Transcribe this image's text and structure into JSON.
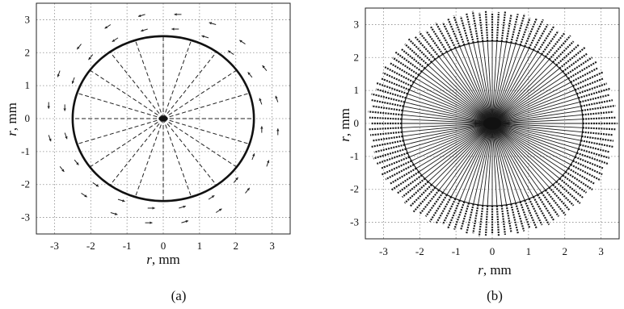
{
  "chart_data": [
    {
      "type": "scatter",
      "panel_label": "(a)",
      "xlabel_var": "r",
      "xlabel_unit": ", mm",
      "ylabel_var": "r",
      "ylabel_unit": ", mm",
      "xlim": [
        -3.5,
        3.5
      ],
      "ylim": [
        -3.5,
        3.5
      ],
      "xticks": [
        -3,
        -2,
        -1,
        0,
        1,
        2,
        3
      ],
      "yticks": [
        -3,
        -2,
        -1,
        0,
        1,
        2,
        3
      ],
      "grid": true,
      "ring_radius": 2.5,
      "ray_count": 20,
      "ray_style": "dashed",
      "arrow_rings": [
        2.75,
        3.2
      ],
      "arrow_length": 0.2,
      "center_blob_radius": 0.08
    },
    {
      "type": "scatter",
      "panel_label": "(b)",
      "xlabel_var": "r",
      "xlabel_unit": ", mm",
      "ylabel_var": "r",
      "ylabel_unit": ", mm",
      "xlim": [
        -3.5,
        3.5
      ],
      "ylim": [
        -3.5,
        3.5
      ],
      "xticks": [
        -3,
        -2,
        -1,
        0,
        1,
        2,
        3
      ],
      "yticks": [
        -3,
        -2,
        -1,
        0,
        1,
        2,
        3
      ],
      "grid": true,
      "ring_radius": 2.5,
      "ray_count": 120,
      "outer_radius": 3.45,
      "center_blob_radius": 0.25
    }
  ]
}
